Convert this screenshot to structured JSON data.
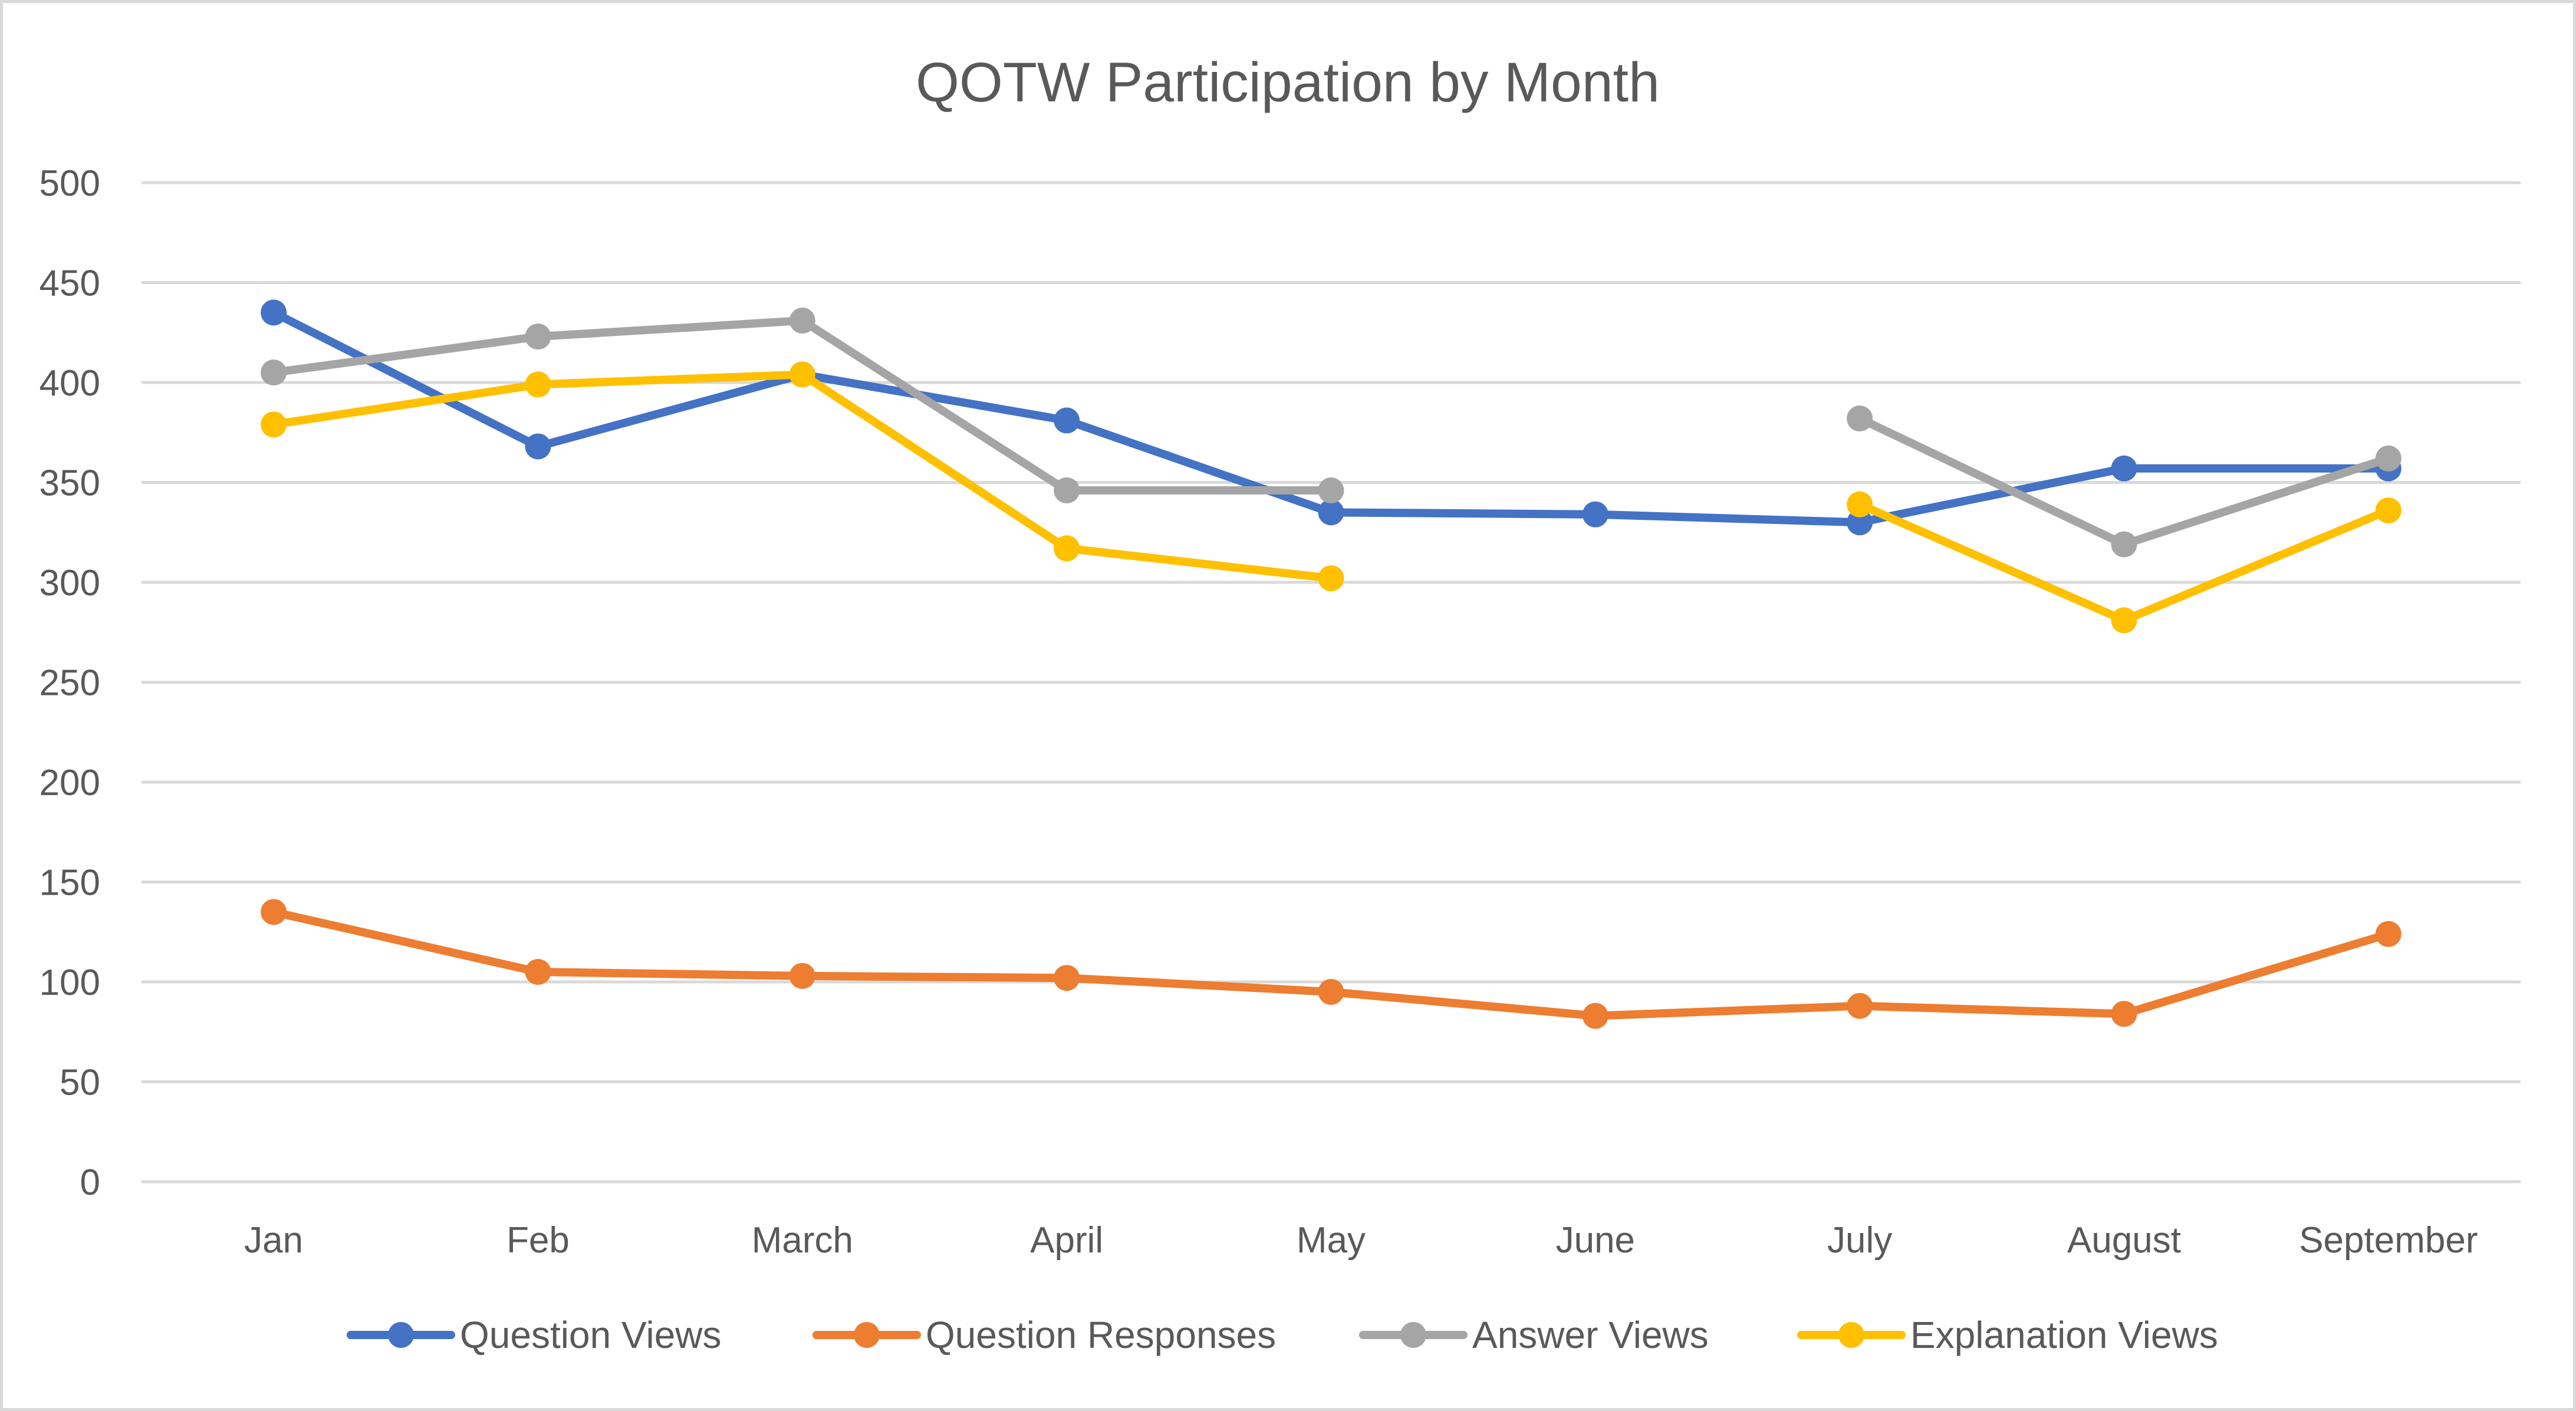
{
  "chart_data": {
    "type": "line",
    "title": "QOTW Participation by Month",
    "xlabel": "",
    "ylabel": "",
    "categories": [
      "Jan",
      "Feb",
      "March",
      "April",
      "May",
      "June",
      "July",
      "August",
      "September"
    ],
    "ylim": [
      0,
      500
    ],
    "yticks": [
      0,
      50,
      100,
      150,
      200,
      250,
      300,
      350,
      400,
      450,
      500
    ],
    "grid": true,
    "legend_position": "bottom",
    "series": [
      {
        "name": "Question Views",
        "color": "#4472C4",
        "values": [
          435,
          368,
          404,
          381,
          335,
          334,
          330,
          357,
          357
        ]
      },
      {
        "name": "Question Responses",
        "color": "#ED7D31",
        "values": [
          135,
          105,
          103,
          102,
          95,
          83,
          88,
          84,
          124
        ]
      },
      {
        "name": "Answer Views",
        "color": "#A5A5A5",
        "values": [
          405,
          423,
          431,
          346,
          346,
          null,
          382,
          319,
          362
        ]
      },
      {
        "name": "Explanation Views",
        "color": "#FFC000",
        "values": [
          379,
          399,
          404,
          317,
          302,
          null,
          339,
          281,
          336
        ]
      }
    ]
  }
}
